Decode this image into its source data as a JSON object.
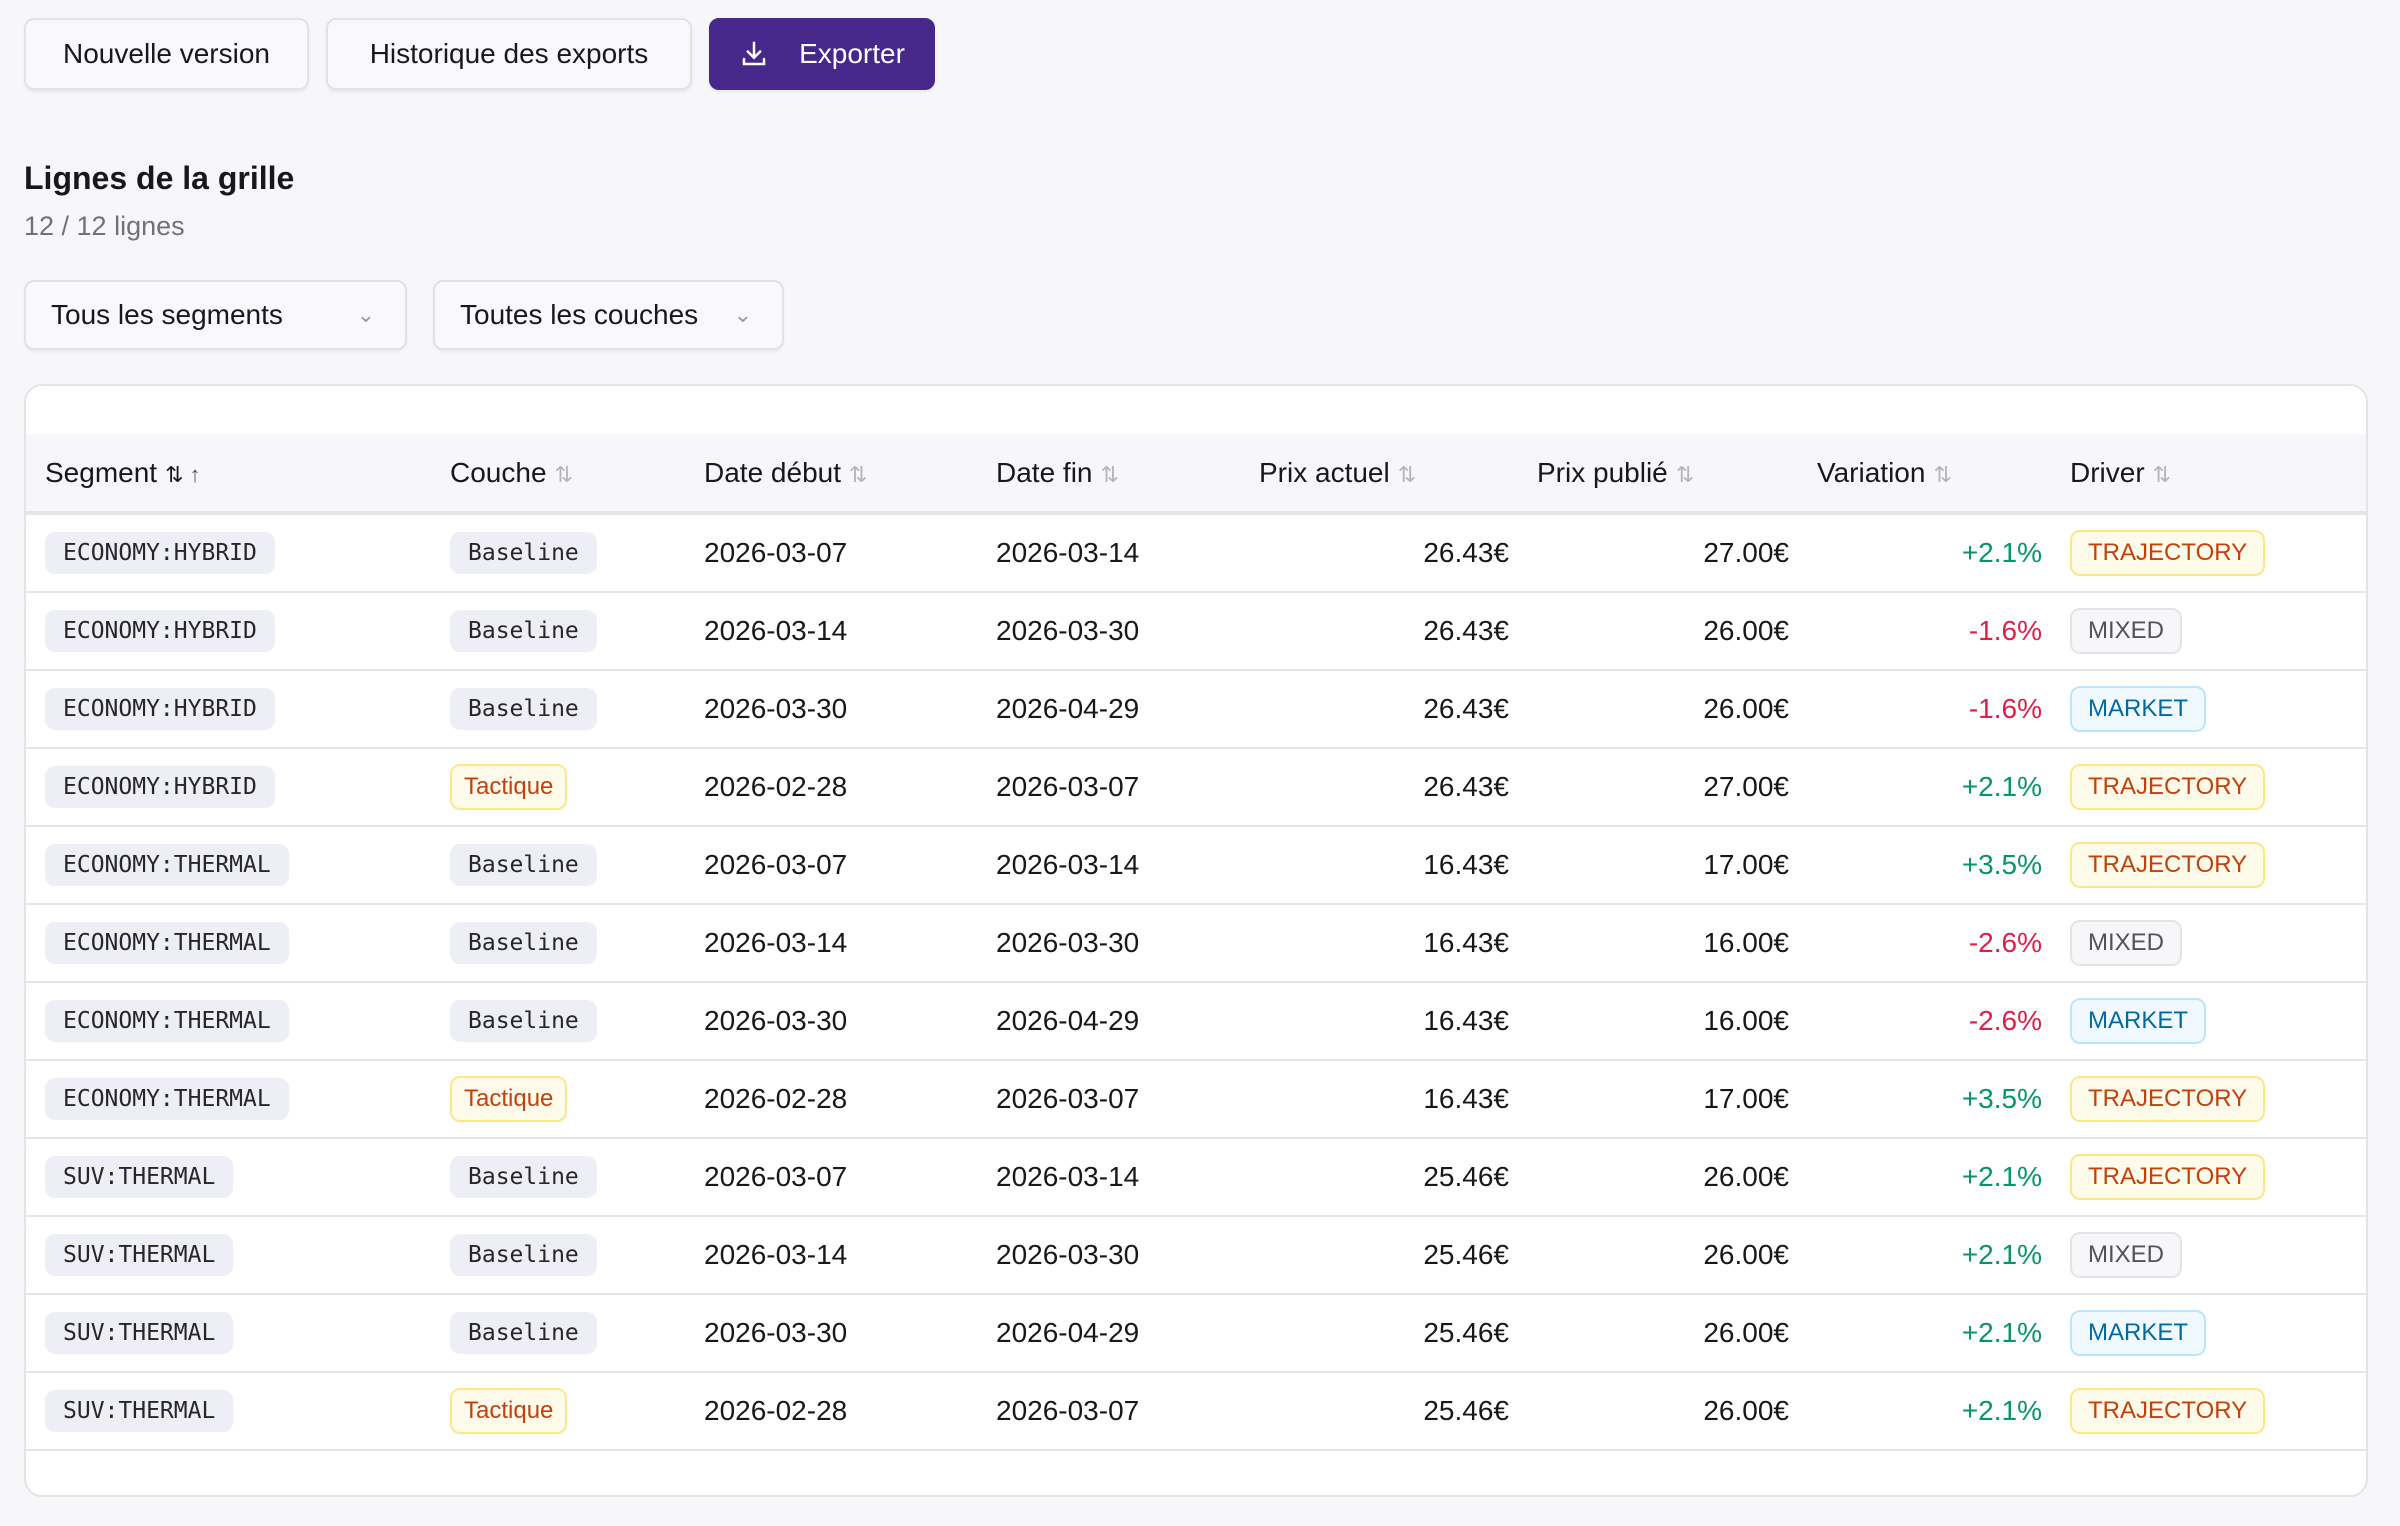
{
  "toolbar": {
    "new_version": "Nouvelle version",
    "export_history": "Historique des exports",
    "export": "Exporter",
    "export_icon": "download-icon",
    "accent": "#45288a"
  },
  "section": {
    "title": "Lignes de la grille",
    "count": "12 / 12 lignes"
  },
  "filters": {
    "segment": "Tous les segments",
    "layer": "Toutes les couches"
  },
  "table": {
    "headers": [
      "Segment",
      "Couche",
      "Date début",
      "Date fin",
      "Prix actuel",
      "Prix publié",
      "Variation",
      "Driver"
    ],
    "sort_icon": "⇅",
    "sort_active": "↑",
    "rows": [
      [
        "ECONOMY:HYBRID",
        "Baseline",
        "2026-03-07",
        "2026-03-14",
        "26.43€",
        "27.00€",
        "+2.1%",
        "TRAJECTORY"
      ],
      [
        "ECONOMY:HYBRID",
        "Baseline",
        "2026-03-14",
        "2026-03-30",
        "26.43€",
        "26.00€",
        "-1.6%",
        "MIXED"
      ],
      [
        "ECONOMY:HYBRID",
        "Baseline",
        "2026-03-30",
        "2026-04-29",
        "26.43€",
        "26.00€",
        "-1.6%",
        "MARKET"
      ],
      [
        "ECONOMY:HYBRID",
        "Tactique",
        "2026-02-28",
        "2026-03-07",
        "26.43€",
        "27.00€",
        "+2.1%",
        "TRAJECTORY"
      ],
      [
        "ECONOMY:THERMAL",
        "Baseline",
        "2026-03-07",
        "2026-03-14",
        "16.43€",
        "17.00€",
        "+3.5%",
        "TRAJECTORY"
      ],
      [
        "ECONOMY:THERMAL",
        "Baseline",
        "2026-03-14",
        "2026-03-30",
        "16.43€",
        "16.00€",
        "-2.6%",
        "MIXED"
      ],
      [
        "ECONOMY:THERMAL",
        "Baseline",
        "2026-03-30",
        "2026-04-29",
        "16.43€",
        "16.00€",
        "-2.6%",
        "MARKET"
      ],
      [
        "ECONOMY:THERMAL",
        "Tactique",
        "2026-02-28",
        "2026-03-07",
        "16.43€",
        "17.00€",
        "+3.5%",
        "TRAJECTORY"
      ],
      [
        "SUV:THERMAL",
        "Baseline",
        "2026-03-07",
        "2026-03-14",
        "25.46€",
        "26.00€",
        "+2.1%",
        "TRAJECTORY"
      ],
      [
        "SUV:THERMAL",
        "Baseline",
        "2026-03-14",
        "2026-03-30",
        "25.46€",
        "26.00€",
        "+2.1%",
        "MIXED"
      ],
      [
        "SUV:THERMAL",
        "Baseline",
        "2026-03-30",
        "2026-04-29",
        "25.46€",
        "26.00€",
        "+2.1%",
        "MARKET"
      ],
      [
        "SUV:THERMAL",
        "Tactique",
        "2026-02-28",
        "2026-03-07",
        "25.46€",
        "26.00€",
        "+2.1%",
        "TRAJECTORY"
      ]
    ]
  },
  "colors": {
    "positive": "#059669",
    "negative": "#e11d48",
    "TRAJECTORY": {
      "bg": "#fffbeb",
      "border": "#fde68a",
      "fg": "#c2410c"
    },
    "MIXED": {
      "bg": "#f7f7f9",
      "border": "#e4e4e7",
      "fg": "#52525b"
    },
    "MARKET": {
      "bg": "#f0f9ff",
      "border": "#bae6fd",
      "fg": "#0369a1"
    },
    "Tactique": {
      "bg": "#fffbeb",
      "border": "#fde68a",
      "fg": "#c2410c"
    }
  }
}
